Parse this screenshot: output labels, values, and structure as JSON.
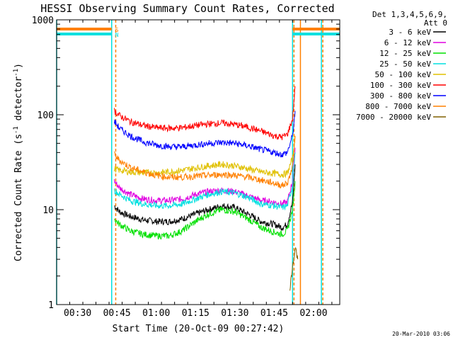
{
  "chart_data": {
    "type": "line",
    "title": "HESSI Observing Summary Count Rates, Corrected",
    "xlabel": "Start Time (20-Oct-09 00:27:42)",
    "ylabel": "Corrected Count Rate (s",
    "ylabel_sup": "-1",
    "ylabel_rest": " detector",
    "ylabel_sup2": "-1",
    "ylabel_close": ")",
    "y_scale": "log",
    "xlim": [
      "00:22",
      "02:10"
    ],
    "ylim": [
      1,
      1000
    ],
    "x_ticks": [
      "00:30",
      "00:45",
      "01:00",
      "01:15",
      "01:30",
      "01:45",
      "02:00"
    ],
    "y_ticks": [
      "1",
      "10",
      "100",
      "1000"
    ],
    "legend_header": [
      "Det 1,3,4,5,6,9,",
      "Att 0"
    ],
    "legend_position": "right",
    "footer_date": "20-Mar-2010 03:06",
    "flags": [
      {
        "label": "S",
        "color": "#ff8000"
      },
      {
        "label": "N",
        "color": "#00e0e0"
      }
    ],
    "vertical_markers": [
      {
        "x": "00:22",
        "color": "#00e0e0",
        "style": "solid"
      },
      {
        "x": "00:43",
        "color": "#00e0e0",
        "style": "solid"
      },
      {
        "x": "00:44",
        "color": "#ff8000",
        "style": "dashed"
      },
      {
        "x": "01:52",
        "color": "#00e0e0",
        "style": "solid"
      },
      {
        "x": "01:52",
        "color": "#ff8000",
        "style": "dashed"
      },
      {
        "x": "01:55",
        "color": "#ff8000",
        "style": "solid"
      },
      {
        "x": "02:03",
        "color": "#00e0e0",
        "style": "solid"
      },
      {
        "x": "02:03",
        "color": "#ff8000",
        "style": "dashed"
      }
    ],
    "series": [
      {
        "name": "3 - 6 keV",
        "color": "#000000",
        "x": [
          "00:44",
          "00:46",
          "00:50",
          "00:55",
          "01:00",
          "01:05",
          "01:10",
          "01:15",
          "01:20",
          "01:25",
          "01:30",
          "01:35",
          "01:40",
          "01:45",
          "01:48",
          "01:50",
          "01:52",
          "01:53"
        ],
        "values": [
          11,
          9.5,
          8.5,
          7.8,
          7.5,
          7.5,
          8,
          9,
          10,
          11,
          10.5,
          9,
          7.5,
          7,
          6.5,
          7,
          12,
          30
        ]
      },
      {
        "name": "6 - 12 keV",
        "color": "#e000e0",
        "x": [
          "00:44",
          "00:46",
          "00:50",
          "00:55",
          "01:00",
          "01:05",
          "01:10",
          "01:15",
          "01:20",
          "01:25",
          "01:30",
          "01:35",
          "01:40",
          "01:45",
          "01:48",
          "01:50",
          "01:52",
          "01:53"
        ],
        "values": [
          20,
          17,
          14.5,
          13,
          12.5,
          12.5,
          13,
          14.5,
          15.5,
          16,
          15.5,
          14,
          12.5,
          12,
          11.5,
          12,
          20,
          45
        ]
      },
      {
        "name": "12 - 25 keV",
        "color": "#00e000",
        "x": [
          "00:44",
          "00:46",
          "00:50",
          "00:55",
          "01:00",
          "01:05",
          "01:10",
          "01:15",
          "01:20",
          "01:25",
          "01:30",
          "01:35",
          "01:40",
          "01:45",
          "01:48",
          "01:50",
          "01:52",
          "01:53"
        ],
        "values": [
          8,
          7,
          6,
          5.5,
          5.3,
          5.3,
          6,
          7.5,
          9,
          10,
          9.5,
          8,
          6.5,
          5.8,
          5.5,
          6,
          10,
          20
        ]
      },
      {
        "name": "25 - 50 keV",
        "color": "#00e0e0",
        "x": [
          "00:44",
          "00:46",
          "00:50",
          "00:55",
          "01:00",
          "01:05",
          "01:10",
          "01:15",
          "01:20",
          "01:25",
          "01:30",
          "01:35",
          "01:40",
          "01:45",
          "01:48",
          "01:50",
          "01:52",
          "01:53"
        ],
        "values": [
          16,
          14.5,
          12.5,
          11.5,
          11,
          11,
          11.5,
          13,
          14.5,
          15.5,
          15,
          13.5,
          11.5,
          11,
          10.5,
          11,
          18,
          40
        ]
      },
      {
        "name": "50 - 100 keV",
        "color": "#e0c000",
        "x": [
          "00:44",
          "00:46",
          "00:50",
          "00:55",
          "01:00",
          "01:05",
          "01:10",
          "01:15",
          "01:20",
          "01:25",
          "01:30",
          "01:35",
          "01:40",
          "01:45",
          "01:48",
          "01:50",
          "01:52",
          "01:53"
        ],
        "values": [
          27,
          26,
          25,
          24.5,
          24.5,
          25,
          26,
          27.5,
          29,
          30,
          29,
          27,
          25,
          24,
          23.5,
          24,
          35,
          60
        ]
      },
      {
        "name": "100 - 300 keV",
        "color": "#ff0000",
        "x": [
          "00:44",
          "00:46",
          "00:50",
          "00:55",
          "01:00",
          "01:05",
          "01:10",
          "01:15",
          "01:20",
          "01:25",
          "01:30",
          "01:35",
          "01:40",
          "01:45",
          "01:48",
          "01:50",
          "01:52",
          "01:53"
        ],
        "values": [
          110,
          98,
          85,
          77,
          73,
          72,
          73,
          77,
          80,
          82,
          79,
          74,
          67,
          60,
          58,
          62,
          90,
          200
        ]
      },
      {
        "name": "300 - 800 keV",
        "color": "#0000ff",
        "x": [
          "00:44",
          "00:46",
          "00:50",
          "00:55",
          "01:00",
          "01:05",
          "01:10",
          "01:15",
          "01:20",
          "01:25",
          "01:30",
          "01:35",
          "01:40",
          "01:45",
          "01:48",
          "01:50",
          "01:52",
          "01:53"
        ],
        "values": [
          85,
          72,
          60,
          52,
          48,
          46,
          46,
          48,
          50,
          51,
          50,
          47,
          43,
          40,
          38,
          40,
          60,
          110
        ]
      },
      {
        "name": "800 - 7000 keV",
        "color": "#ff8000",
        "x": [
          "00:44",
          "00:46",
          "00:50",
          "00:55",
          "01:00",
          "01:05",
          "01:10",
          "01:15",
          "01:20",
          "01:25",
          "01:30",
          "01:35",
          "01:40",
          "01:45",
          "01:48",
          "01:50",
          "01:52",
          "01:53"
        ],
        "values": [
          38,
          33,
          28,
          25,
          23,
          22,
          22,
          22.5,
          23,
          23.5,
          23,
          22,
          20.5,
          19,
          18,
          19,
          28,
          60
        ]
      },
      {
        "name": "7000 - 20000 keV",
        "color": "#806000",
        "x": [
          "01:51",
          "01:52",
          "01:53",
          "01:54"
        ],
        "values": [
          1.5,
          2.5,
          4,
          3
        ]
      }
    ]
  }
}
